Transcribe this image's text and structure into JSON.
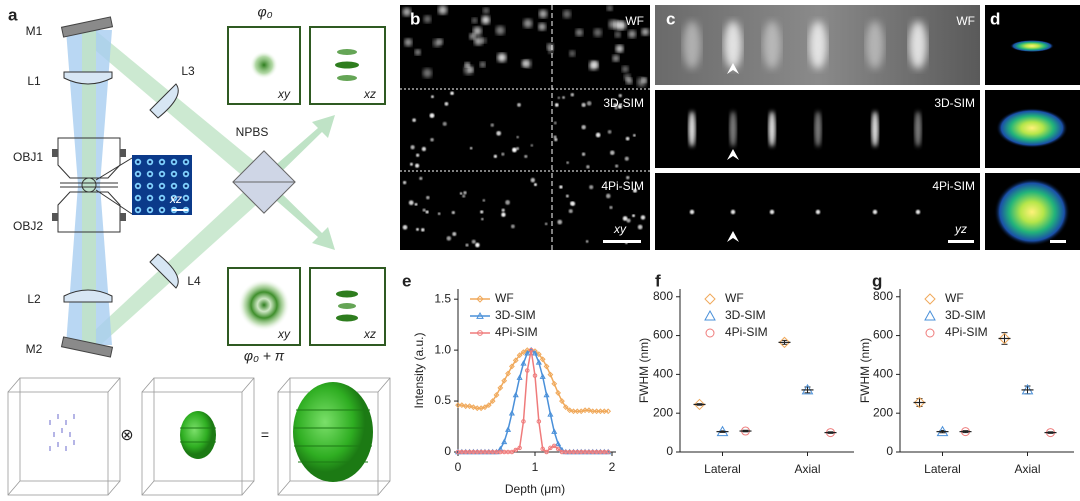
{
  "panel_a": {
    "label": "a",
    "m1": "M1",
    "l1": "L1",
    "obj1": "OBJ1",
    "obj2": "OBJ2",
    "l2": "L2",
    "m2": "M2",
    "l3": "L3",
    "l4": "L4",
    "npbs": "NPBS",
    "phase_top": "φ₀",
    "phase_bottom": "φ₀ + π",
    "xy_top": "xy",
    "xz_top": "xz",
    "xy_bottom": "xy",
    "xz_bottom": "xz",
    "inset": "xz",
    "convolve": "⊗",
    "equals": "="
  },
  "panel_b": {
    "label": "b",
    "rows": [
      "WF",
      "3D-SIM",
      "4Pi-SIM"
    ],
    "scale": "xy"
  },
  "panel_c": {
    "label": "c",
    "rows": [
      "WF",
      "3D-SIM",
      "4Pi-SIM"
    ],
    "scale": "yz"
  },
  "panel_d": {
    "label": "d"
  },
  "chart_data": [
    {
      "type": "line",
      "panel_label": "e",
      "x_label": "Depth (μm)",
      "y_label": "Intensity (a.u.)",
      "x": [
        0,
        0.05,
        0.1,
        0.15,
        0.2,
        0.25,
        0.3,
        0.35,
        0.4,
        0.45,
        0.5,
        0.55,
        0.6,
        0.65,
        0.7,
        0.75,
        0.8,
        0.85,
        0.9,
        0.95,
        1.0,
        1.05,
        1.1,
        1.15,
        1.2,
        1.25,
        1.3,
        1.35,
        1.4,
        1.45,
        1.5,
        1.55,
        1.6,
        1.65,
        1.7,
        1.75,
        1.8,
        1.85,
        1.9,
        1.95
      ],
      "series": [
        {
          "name": "WF",
          "color": "#f0a95b",
          "marker": "diamond",
          "values": [
            0.46,
            0.46,
            0.45,
            0.45,
            0.44,
            0.43,
            0.43,
            0.44,
            0.46,
            0.5,
            0.56,
            0.63,
            0.7,
            0.77,
            0.84,
            0.9,
            0.95,
            0.98,
            1.0,
            1.0,
            0.99,
            0.96,
            0.91,
            0.84,
            0.76,
            0.67,
            0.58,
            0.5,
            0.44,
            0.41,
            0.4,
            0.4,
            0.4,
            0.41,
            0.41,
            0.4,
            0.4,
            0.4,
            0.4,
            0.4
          ]
        },
        {
          "name": "3D-SIM",
          "color": "#4a90d9",
          "marker": "triangle",
          "values": [
            0,
            0,
            0,
            0,
            0,
            0,
            0,
            0,
            0,
            0,
            0,
            0.03,
            0.1,
            0.22,
            0.38,
            0.56,
            0.73,
            0.87,
            0.97,
            1.0,
            0.97,
            0.88,
            0.74,
            0.56,
            0.37,
            0.2,
            0.08,
            0.02,
            0,
            0,
            0,
            0,
            0,
            0,
            0,
            0,
            0,
            0,
            0,
            0
          ]
        },
        {
          "name": "4Pi-SIM",
          "color": "#ef7b7b",
          "marker": "circle",
          "values": [
            0,
            0,
            0,
            0,
            0,
            0,
            0,
            0,
            0,
            0,
            0,
            0,
            0,
            0,
            0,
            0.02,
            0.04,
            0.3,
            0.8,
            1.0,
            0.75,
            0.3,
            0.03,
            0,
            0.04,
            0.06,
            0.03,
            0,
            0,
            0,
            0,
            0,
            0,
            0,
            0,
            0,
            0,
            0,
            0,
            0
          ]
        }
      ],
      "xlim": [
        0,
        2
      ],
      "xticks": [
        0,
        1,
        2
      ],
      "ylim": [
        0,
        1.6
      ],
      "yticks": [
        0,
        0.5,
        {
          "value": 1,
          "label": "1.0"
        },
        1.5
      ]
    },
    {
      "type": "dot",
      "panel_label": "f",
      "y_label": "FWHM (nm)",
      "categories": [
        "Lateral",
        "Axial"
      ],
      "series": [
        {
          "name": "WF",
          "color": "#f0a95b",
          "marker": "diamond",
          "values": [
            245,
            565
          ],
          "errors": [
            4,
            10
          ]
        },
        {
          "name": "3D-SIM",
          "color": "#4a90d9",
          "marker": "triangle",
          "values": [
            105,
            320
          ],
          "errors": [
            4,
            15
          ]
        },
        {
          "name": "4Pi-SIM",
          "color": "#ef7b7b",
          "marker": "circle",
          "values": [
            108,
            100
          ],
          "errors": [
            4,
            4
          ]
        }
      ],
      "ylim": [
        0,
        840
      ],
      "yticks": [
        0,
        200,
        400,
        600,
        800
      ]
    },
    {
      "type": "dot",
      "panel_label": "g",
      "y_label": "FWHM (nm)",
      "categories": [
        "Lateral",
        "Axial"
      ],
      "series": [
        {
          "name": "WF",
          "color": "#f0a95b",
          "marker": "diamond",
          "values": [
            255,
            585
          ],
          "errors": [
            20,
            30
          ]
        },
        {
          "name": "3D-SIM",
          "color": "#4a90d9",
          "marker": "triangle",
          "values": [
            105,
            320
          ],
          "errors": [
            6,
            20
          ]
        },
        {
          "name": "4Pi-SIM",
          "color": "#ef7b7b",
          "marker": "circle",
          "values": [
            105,
            100
          ],
          "errors": [
            5,
            4
          ]
        }
      ],
      "ylim": [
        0,
        840
      ],
      "yticks": [
        0,
        200,
        400,
        600,
        800
      ]
    }
  ]
}
